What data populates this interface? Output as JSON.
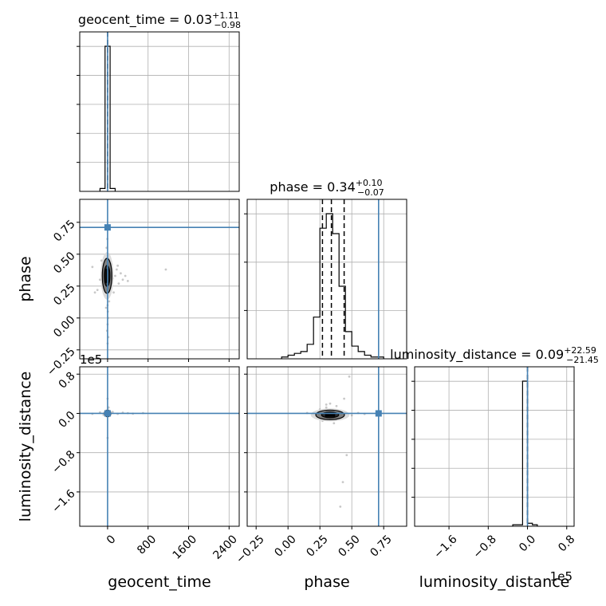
{
  "chart_data": {
    "type": "corner",
    "parameters": [
      "geocent_time",
      "phase",
      "luminosity_distance"
    ],
    "truth_color": "#4682b4",
    "panels": {
      "geocent_time_hist": {
        "title_name": "geocent_time = 0.03",
        "title_sup": "+1.11",
        "title_sub": "−0.98",
        "xlim": [
          -550,
          2600
        ],
        "bins": [
          [
            -150,
            -50,
            0.02
          ],
          [
            -50,
            50,
            1.0
          ],
          [
            50,
            150,
            0.02
          ]
        ],
        "quantile_lines": [
          0
        ],
        "truth": 0
      },
      "phase_hist": {
        "title_name": "phase = 0.34",
        "title_sup": "+0.10",
        "title_sub": "−0.07",
        "xlim": [
          -0.32,
          0.93
        ],
        "bins": [
          [
            -0.05,
            0.0,
            0.01
          ],
          [
            0.0,
            0.05,
            0.02
          ],
          [
            0.05,
            0.1,
            0.03
          ],
          [
            0.1,
            0.15,
            0.04
          ],
          [
            0.15,
            0.2,
            0.08
          ],
          [
            0.2,
            0.25,
            0.23
          ],
          [
            0.25,
            0.3,
            0.72
          ],
          [
            0.3,
            0.35,
            0.8
          ],
          [
            0.35,
            0.4,
            0.69
          ],
          [
            0.4,
            0.45,
            0.4
          ],
          [
            0.45,
            0.5,
            0.15
          ],
          [
            0.5,
            0.55,
            0.07
          ],
          [
            0.55,
            0.6,
            0.04
          ],
          [
            0.6,
            0.65,
            0.02
          ],
          [
            0.65,
            0.7,
            0.01
          ],
          [
            0.7,
            0.75,
            0.01
          ]
        ],
        "quantile_lines": [
          0.27,
          0.34,
          0.44
        ],
        "truth": 0.71
      },
      "luminosity_distance_hist": {
        "title_name": "luminosity_distance = 0.09",
        "title_sup": "+22.59",
        "title_sub": "−21.45",
        "xlim": [
          -230000,
          95000
        ],
        "bins": [
          [
            -30000,
            -10000,
            0.01
          ],
          [
            -10000,
            0,
            0.98
          ],
          [
            0,
            10000,
            0.02
          ],
          [
            10000,
            20000,
            0.01
          ]
        ],
        "quantile_lines": [
          0
        ],
        "truth": 0
      },
      "phase_vs_geocent_time": {
        "xlim": [
          -550,
          2600
        ],
        "ylim": [
          -0.32,
          0.93
        ],
        "points": [
          [
            -300,
            0.4
          ],
          [
            -200,
            0.22
          ],
          [
            -150,
            0.3
          ],
          [
            -120,
            0.45
          ],
          [
            -100,
            0.35
          ],
          [
            -80,
            0.25
          ],
          [
            -60,
            0.4
          ],
          [
            -40,
            0.18
          ],
          [
            -20,
            0.55
          ],
          [
            0,
            0.1
          ],
          [
            0,
            -0.05
          ],
          [
            0,
            -0.2
          ],
          [
            10,
            0.0
          ],
          [
            20,
            0.5
          ],
          [
            40,
            0.28
          ],
          [
            60,
            0.36
          ],
          [
            80,
            0.42
          ],
          [
            100,
            0.31
          ],
          [
            120,
            0.2
          ],
          [
            150,
            0.33
          ],
          [
            180,
            0.38
          ],
          [
            220,
            0.27
          ],
          [
            260,
            0.35
          ],
          [
            300,
            0.3
          ],
          [
            350,
            0.33
          ],
          [
            400,
            0.29
          ],
          [
            1150,
            0.38
          ],
          [
            -30,
            0.08
          ],
          [
            30,
            0.13
          ],
          [
            -10,
            -0.1
          ],
          [
            15,
            -0.15
          ],
          [
            -5,
            0.62
          ],
          [
            5,
            0.05
          ],
          [
            -250,
            0.2
          ],
          [
            200,
            0.41
          ]
        ],
        "contour_center": [
          -10,
          0.33
        ],
        "truth": [
          0,
          0.71
        ]
      },
      "luminosity_distance_vs_geocent_time": {
        "xlim": [
          -550,
          2600
        ],
        "ylim": [
          -230000,
          95000
        ],
        "points": [
          [
            -150,
            2000
          ],
          [
            -80,
            -3000
          ],
          [
            -40,
            1000
          ],
          [
            0,
            30000
          ],
          [
            0,
            -50000
          ],
          [
            20,
            12000
          ],
          [
            50,
            -2000
          ],
          [
            100,
            3000
          ],
          [
            200,
            -1000
          ],
          [
            300,
            1500
          ],
          [
            400,
            500
          ],
          [
            500,
            -500
          ],
          [
            700,
            800
          ],
          [
            -300,
            -800
          ]
        ],
        "contour_center": [
          0,
          0
        ],
        "truth": [
          0,
          0
        ]
      },
      "luminosity_distance_vs_phase": {
        "xlim": [
          -0.32,
          0.93
        ],
        "ylim": [
          -230000,
          95000
        ],
        "points": [
          [
            0.2,
            -2000
          ],
          [
            0.25,
            8000
          ],
          [
            0.28,
            -10000
          ],
          [
            0.3,
            12000
          ],
          [
            0.32,
            -6000
          ],
          [
            0.35,
            5000
          ],
          [
            0.38,
            -12000
          ],
          [
            0.4,
            3000
          ],
          [
            0.42,
            -3000
          ],
          [
            0.45,
            2000
          ],
          [
            0.5,
            -4000
          ],
          [
            0.55,
            1000
          ],
          [
            0.33,
            20000
          ],
          [
            0.36,
            -20000
          ],
          [
            0.44,
            30000
          ],
          [
            0.48,
            75000
          ],
          [
            0.46,
            -85000
          ],
          [
            0.43,
            -140000
          ],
          [
            0.41,
            -190000
          ],
          [
            0.15,
            1000
          ],
          [
            0.6,
            -1000
          ],
          [
            0.3,
            18000
          ],
          [
            0.27,
            -15000
          ],
          [
            0.38,
            15000
          ]
        ],
        "contour_center": [
          0.33,
          -3000
        ],
        "truth": [
          0.71,
          0
        ]
      }
    },
    "ticks": {
      "geocent_time": [
        {
          "value": 0,
          "label": "0"
        },
        {
          "value": 800,
          "label": "800"
        },
        {
          "value": 1600,
          "label": "1600"
        },
        {
          "value": 2400,
          "label": "2400"
        }
      ],
      "phase": [
        {
          "value": -0.25,
          "label": "−0.25"
        },
        {
          "value": 0.0,
          "label": "0.00"
        },
        {
          "value": 0.25,
          "label": "0.25"
        },
        {
          "value": 0.5,
          "label": "0.50"
        },
        {
          "value": 0.75,
          "label": "0.75"
        }
      ],
      "luminosity_distance": [
        {
          "value": -160000,
          "label": "−1.6"
        },
        {
          "value": -80000,
          "label": "−0.8"
        },
        {
          "value": 0,
          "label": "0.0"
        },
        {
          "value": 80000,
          "label": "0.8"
        }
      ]
    },
    "offset_labels": {
      "luminosity_distance_y": "1e5",
      "luminosity_distance_x": "1e5"
    },
    "axis_labels": {
      "x": [
        "geocent_time",
        "phase",
        "luminosity_distance"
      ],
      "y": [
        "phase",
        "luminosity_distance"
      ]
    }
  }
}
